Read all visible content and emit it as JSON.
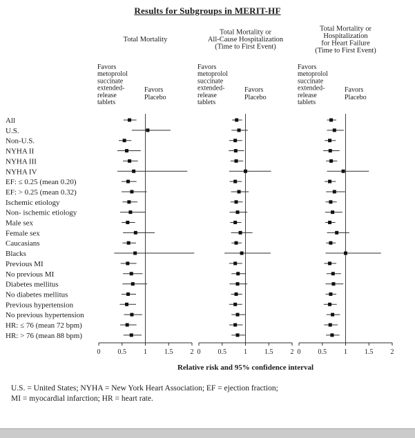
{
  "page": {
    "title": "Results for Subgroups in MERIT-HF",
    "axis_label": "Relative risk and 95% confidence interval",
    "footnotes": [
      "U.S. = United States; NYHA = New York Heart Association; EF = ejection fraction;",
      "MI = myocardial infarction; HR = heart rate."
    ]
  },
  "chart_data": {
    "type": "forest",
    "title": "Results for Subgroups in MERIT-HF",
    "xlabel": "Relative risk and 95% confidence interval",
    "xlim": [
      0,
      2
    ],
    "x_tick_values": [
      0,
      0.5,
      1,
      1.5,
      2
    ],
    "x_ticks": [
      "0",
      "0.5",
      "1",
      "1.5",
      "2"
    ],
    "reference_line": 1,
    "marker_color": "#111111",
    "line_color": "#2b2b2b",
    "subgroups": [
      "All",
      "U.S.",
      "Non-U.S.",
      "NYHA II",
      "NYHA III",
      "NYHA IV",
      "EF: ≤ 0.25 (mean 0.20)",
      "EF: > 0.25 (mean 0.32)",
      "Ischemic etiology",
      "Non- ischemic etiology",
      "Male sex",
      "Female sex",
      "Caucasians",
      "Blacks",
      "Previous MI",
      "No previous MI",
      "Diabetes mellitus",
      "No diabetes mellitus",
      "Previous hypertension",
      "No previous hypertension",
      "HR: ≤ 76 (mean 72 bpm)",
      "HR: > 76 (mean 88 bpm)"
    ],
    "panels": [
      {
        "title_lines": [
          "Total Mortality"
        ],
        "favors_left_lines": [
          "Favors",
          "metoprolol",
          "succinate",
          "extended-",
          "release",
          "tablets"
        ],
        "favors_right_lines": [
          "Favors",
          "Placebo"
        ],
        "points": [
          {
            "est": 0.66,
            "lo": 0.53,
            "hi": 0.81
          },
          {
            "est": 1.05,
            "lo": 0.71,
            "hi": 1.54
          },
          {
            "est": 0.55,
            "lo": 0.43,
            "hi": 0.7
          },
          {
            "est": 0.6,
            "lo": 0.4,
            "hi": 0.9
          },
          {
            "est": 0.66,
            "lo": 0.52,
            "hi": 0.84
          },
          {
            "est": 0.75,
            "lo": 0.4,
            "hi": 1.9
          },
          {
            "est": 0.63,
            "lo": 0.49,
            "hi": 0.81
          },
          {
            "est": 0.71,
            "lo": 0.49,
            "hi": 1.03
          },
          {
            "est": 0.65,
            "lo": 0.51,
            "hi": 0.83
          },
          {
            "est": 0.68,
            "lo": 0.46,
            "hi": 1.0
          },
          {
            "est": 0.62,
            "lo": 0.49,
            "hi": 0.78
          },
          {
            "est": 0.79,
            "lo": 0.52,
            "hi": 1.2
          },
          {
            "est": 0.64,
            "lo": 0.51,
            "hi": 0.8
          },
          {
            "est": 0.78,
            "lo": 0.33,
            "hi": 2.05
          },
          {
            "est": 0.62,
            "lo": 0.47,
            "hi": 0.81
          },
          {
            "est": 0.7,
            "lo": 0.52,
            "hi": 0.94
          },
          {
            "est": 0.73,
            "lo": 0.51,
            "hi": 1.04
          },
          {
            "est": 0.63,
            "lo": 0.49,
            "hi": 0.8
          },
          {
            "est": 0.6,
            "lo": 0.45,
            "hi": 0.8
          },
          {
            "est": 0.71,
            "lo": 0.54,
            "hi": 0.93
          },
          {
            "est": 0.61,
            "lo": 0.46,
            "hi": 0.81
          },
          {
            "est": 0.7,
            "lo": 0.53,
            "hi": 0.92
          }
        ]
      },
      {
        "title_lines": [
          "Total Mortality or",
          "All-Cause Hospitalization",
          "(Time to First Event)"
        ],
        "favors_left_lines": [
          "Favors",
          "metoprolol",
          "succinate",
          "extended-",
          "release",
          "tablets"
        ],
        "favors_right_lines": [
          "Favors",
          "Placebo"
        ],
        "points": [
          {
            "est": 0.81,
            "lo": 0.71,
            "hi": 0.93
          },
          {
            "est": 0.86,
            "lo": 0.7,
            "hi": 1.05
          },
          {
            "est": 0.78,
            "lo": 0.65,
            "hi": 0.93
          },
          {
            "est": 0.79,
            "lo": 0.64,
            "hi": 0.97
          },
          {
            "est": 0.8,
            "lo": 0.68,
            "hi": 0.95
          },
          {
            "est": 1.0,
            "lo": 0.65,
            "hi": 1.55
          },
          {
            "est": 0.78,
            "lo": 0.66,
            "hi": 0.92
          },
          {
            "est": 0.86,
            "lo": 0.69,
            "hi": 1.07
          },
          {
            "est": 0.8,
            "lo": 0.68,
            "hi": 0.94
          },
          {
            "est": 0.83,
            "lo": 0.66,
            "hi": 1.04
          },
          {
            "est": 0.78,
            "lo": 0.67,
            "hi": 0.91
          },
          {
            "est": 0.89,
            "lo": 0.69,
            "hi": 1.15
          },
          {
            "est": 0.8,
            "lo": 0.7,
            "hi": 0.92
          },
          {
            "est": 0.92,
            "lo": 0.55,
            "hi": 1.54
          },
          {
            "est": 0.78,
            "lo": 0.65,
            "hi": 0.93
          },
          {
            "est": 0.84,
            "lo": 0.7,
            "hi": 1.01
          },
          {
            "est": 0.83,
            "lo": 0.66,
            "hi": 1.04
          },
          {
            "est": 0.8,
            "lo": 0.69,
            "hi": 0.93
          },
          {
            "est": 0.78,
            "lo": 0.65,
            "hi": 0.93
          },
          {
            "est": 0.83,
            "lo": 0.7,
            "hi": 0.99
          },
          {
            "est": 0.78,
            "lo": 0.65,
            "hi": 0.94
          },
          {
            "est": 0.83,
            "lo": 0.7,
            "hi": 0.99
          }
        ]
      },
      {
        "title_lines": [
          "Total Mortality or",
          "Hospitalization",
          "for Heart Failure",
          "(Time to First Event)"
        ],
        "favors_left_lines": [
          "Favors",
          "metoprolol",
          "succinate",
          "extended-",
          "release",
          "tablets"
        ],
        "favors_right_lines": [
          "Favors",
          "Placebo"
        ],
        "points": [
          {
            "est": 0.69,
            "lo": 0.6,
            "hi": 0.8
          },
          {
            "est": 0.76,
            "lo": 0.6,
            "hi": 0.96
          },
          {
            "est": 0.66,
            "lo": 0.55,
            "hi": 0.79
          },
          {
            "est": 0.67,
            "lo": 0.52,
            "hi": 0.87
          },
          {
            "est": 0.69,
            "lo": 0.58,
            "hi": 0.82
          },
          {
            "est": 0.95,
            "lo": 0.6,
            "hi": 1.5
          },
          {
            "est": 0.66,
            "lo": 0.55,
            "hi": 0.79
          },
          {
            "est": 0.76,
            "lo": 0.58,
            "hi": 0.99
          },
          {
            "est": 0.68,
            "lo": 0.57,
            "hi": 0.81
          },
          {
            "est": 0.72,
            "lo": 0.56,
            "hi": 0.93
          },
          {
            "est": 0.66,
            "lo": 0.56,
            "hi": 0.78
          },
          {
            "est": 0.81,
            "lo": 0.6,
            "hi": 1.08
          },
          {
            "est": 0.68,
            "lo": 0.58,
            "hi": 0.79
          },
          {
            "est": 1.0,
            "lo": 0.57,
            "hi": 1.76
          },
          {
            "est": 0.66,
            "lo": 0.54,
            "hi": 0.8
          },
          {
            "est": 0.73,
            "lo": 0.59,
            "hi": 0.9
          },
          {
            "est": 0.74,
            "lo": 0.57,
            "hi": 0.95
          },
          {
            "est": 0.68,
            "lo": 0.57,
            "hi": 0.8
          },
          {
            "est": 0.66,
            "lo": 0.53,
            "hi": 0.81
          },
          {
            "est": 0.72,
            "lo": 0.59,
            "hi": 0.88
          },
          {
            "est": 0.67,
            "lo": 0.54,
            "hi": 0.83
          },
          {
            "est": 0.71,
            "lo": 0.58,
            "hi": 0.87
          }
        ]
      }
    ]
  }
}
